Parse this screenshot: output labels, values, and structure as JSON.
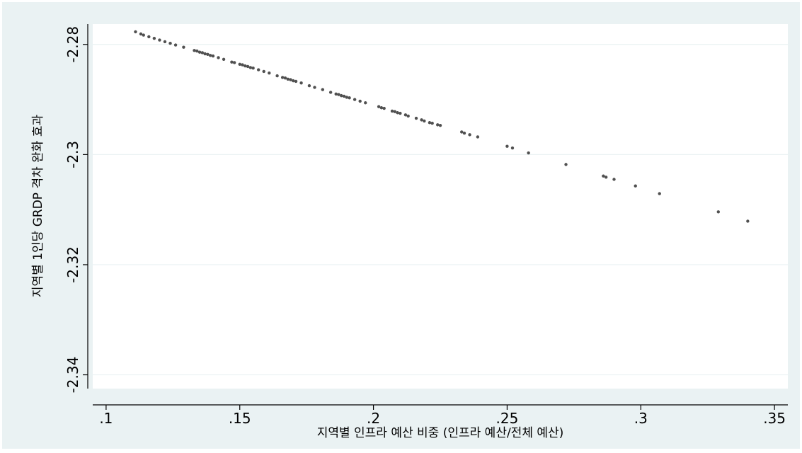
{
  "chart_data": {
    "type": "scatter",
    "title": "",
    "xlabel": "지역별 인프라 예산 비중 (인프라 예산/전체 예산)",
    "ylabel": "지역별 1인당 GRDP 격차 완화 효과",
    "xlim": [
      0.095,
      0.355
    ],
    "ylim": [
      -2.3425,
      -2.2763
    ],
    "x_ticks": [
      0.1,
      0.15,
      0.2,
      0.25,
      0.3,
      0.35
    ],
    "x_tick_labels": [
      ".1",
      ".15",
      ".2",
      ".25",
      ".3",
      ".35"
    ],
    "y_ticks": [
      -2.28,
      -2.3,
      -2.32,
      -2.34
    ],
    "y_tick_labels": [
      "-2.28",
      "-2.3",
      "-2.32",
      "-2.34"
    ],
    "grid": true,
    "marker_color": "#505050",
    "background_color": "#eaf2f3",
    "plot_background_color": "#ffffff",
    "grid_color": "#eaf2f3",
    "x": [
      0.111,
      0.113,
      0.114,
      0.116,
      0.118,
      0.12,
      0.122,
      0.124,
      0.126,
      0.129,
      0.133,
      0.134,
      0.135,
      0.136,
      0.137,
      0.138,
      0.139,
      0.14,
      0.142,
      0.144,
      0.147,
      0.148,
      0.15,
      0.151,
      0.152,
      0.153,
      0.154,
      0.155,
      0.157,
      0.159,
      0.161,
      0.164,
      0.166,
      0.167,
      0.168,
      0.169,
      0.17,
      0.171,
      0.173,
      0.176,
      0.178,
      0.181,
      0.184,
      0.186,
      0.187,
      0.188,
      0.189,
      0.19,
      0.191,
      0.193,
      0.195,
      0.197,
      0.202,
      0.203,
      0.204,
      0.207,
      0.208,
      0.209,
      0.21,
      0.212,
      0.213,
      0.216,
      0.218,
      0.219,
      0.221,
      0.222,
      0.224,
      0.225,
      0.233,
      0.234,
      0.236,
      0.239,
      0.25,
      0.252,
      0.258,
      0.272,
      0.286,
      0.287,
      0.29,
      0.298,
      0.307,
      0.329,
      0.34
    ],
    "y": [
      -2.2777,
      -2.2781,
      -2.2783,
      -2.2786,
      -2.2789,
      -2.2792,
      -2.2795,
      -2.2798,
      -2.2801,
      -2.2805,
      -2.2811,
      -2.2812,
      -2.2814,
      -2.2815,
      -2.2817,
      -2.2818,
      -2.282,
      -2.2821,
      -2.2824,
      -2.2827,
      -2.2832,
      -2.2833,
      -2.2836,
      -2.2837,
      -2.2839,
      -2.284,
      -2.2842,
      -2.2843,
      -2.2846,
      -2.2849,
      -2.2852,
      -2.2857,
      -2.286,
      -2.2861,
      -2.2863,
      -2.2864,
      -2.2866,
      -2.2867,
      -2.287,
      -2.2875,
      -2.2878,
      -2.2882,
      -2.2887,
      -2.289,
      -2.2891,
      -2.2893,
      -2.2894,
      -2.2896,
      -2.2897,
      -2.29,
      -2.2903,
      -2.2906,
      -2.2913,
      -2.2915,
      -2.2916,
      -2.2921,
      -2.2922,
      -2.2924,
      -2.2925,
      -2.2928,
      -2.293,
      -2.2934,
      -2.2937,
      -2.2939,
      -2.2942,
      -2.2943,
      -2.2946,
      -2.2947,
      -2.2959,
      -2.2961,
      -2.2964,
      -2.2968,
      -2.2985,
      -2.2988,
      -2.2997,
      -2.3018,
      -2.3039,
      -2.3041,
      -2.3045,
      -2.3057,
      -2.3071,
      -2.3104,
      -2.3121
    ]
  }
}
